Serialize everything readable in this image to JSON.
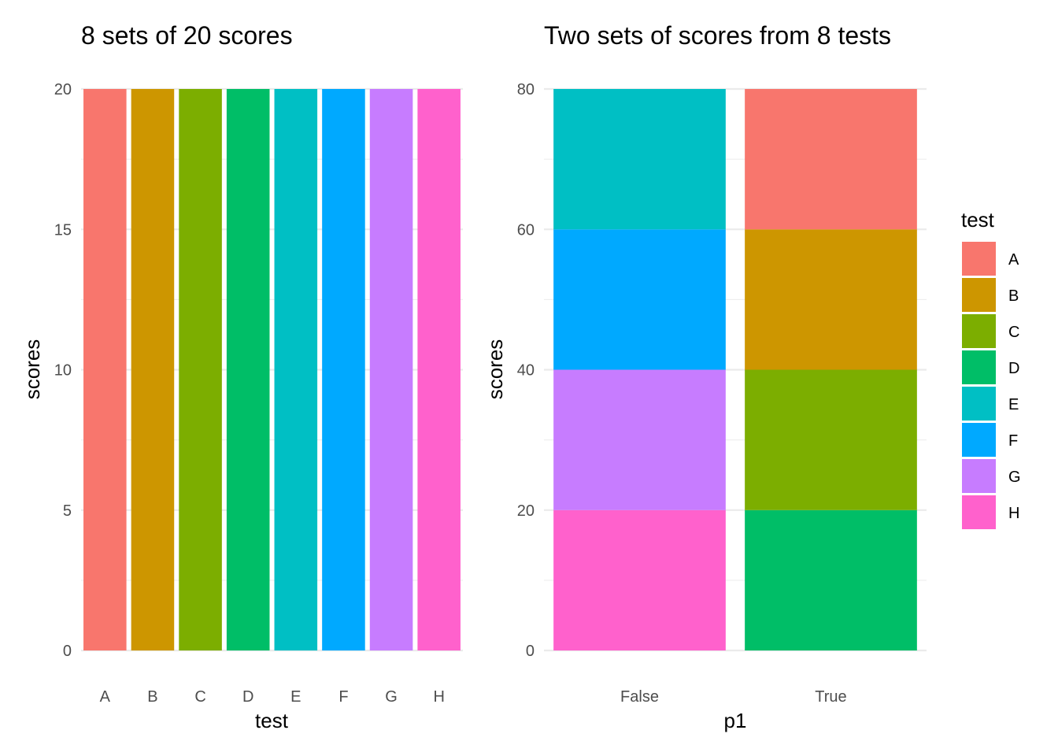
{
  "chart_data": [
    {
      "type": "bar",
      "title": "8 sets of 20 scores",
      "xlabel": "test",
      "ylabel": "scores",
      "categories": [
        "A",
        "B",
        "C",
        "D",
        "E",
        "F",
        "G",
        "H"
      ],
      "values": [
        20,
        20,
        20,
        20,
        20,
        20,
        20,
        20
      ],
      "colors": [
        "#F8766D",
        "#CD9600",
        "#7CAE00",
        "#00BE67",
        "#00BFC4",
        "#00A9FF",
        "#C77CFF",
        "#FF61CC"
      ],
      "ylim": [
        0,
        20
      ],
      "yticks": [
        0,
        5,
        10,
        15,
        20
      ],
      "grid": true
    },
    {
      "type": "bar",
      "stacked": true,
      "title": "Two sets of scores from 8 tests",
      "xlabel": "p1",
      "ylabel": "scores",
      "categories": [
        "False",
        "True"
      ],
      "series": [
        {
          "name": "A",
          "values": [
            0,
            20
          ]
        },
        {
          "name": "B",
          "values": [
            0,
            20
          ]
        },
        {
          "name": "C",
          "values": [
            0,
            20
          ]
        },
        {
          "name": "D",
          "values": [
            0,
            20
          ]
        },
        {
          "name": "E",
          "values": [
            20,
            0
          ]
        },
        {
          "name": "F",
          "values": [
            20,
            0
          ]
        },
        {
          "name": "G",
          "values": [
            20,
            0
          ]
        },
        {
          "name": "H",
          "values": [
            20,
            0
          ]
        }
      ],
      "ylim": [
        0,
        80
      ],
      "yticks": [
        0,
        20,
        40,
        60,
        80
      ],
      "grid": true,
      "legend": {
        "title": "test",
        "position": "right",
        "items": [
          "A",
          "B",
          "C",
          "D",
          "E",
          "F",
          "G",
          "H"
        ],
        "colors": [
          "#F8766D",
          "#CD9600",
          "#7CAE00",
          "#00BE67",
          "#00BFC4",
          "#00A9FF",
          "#C77CFF",
          "#FF61CC"
        ]
      }
    }
  ]
}
